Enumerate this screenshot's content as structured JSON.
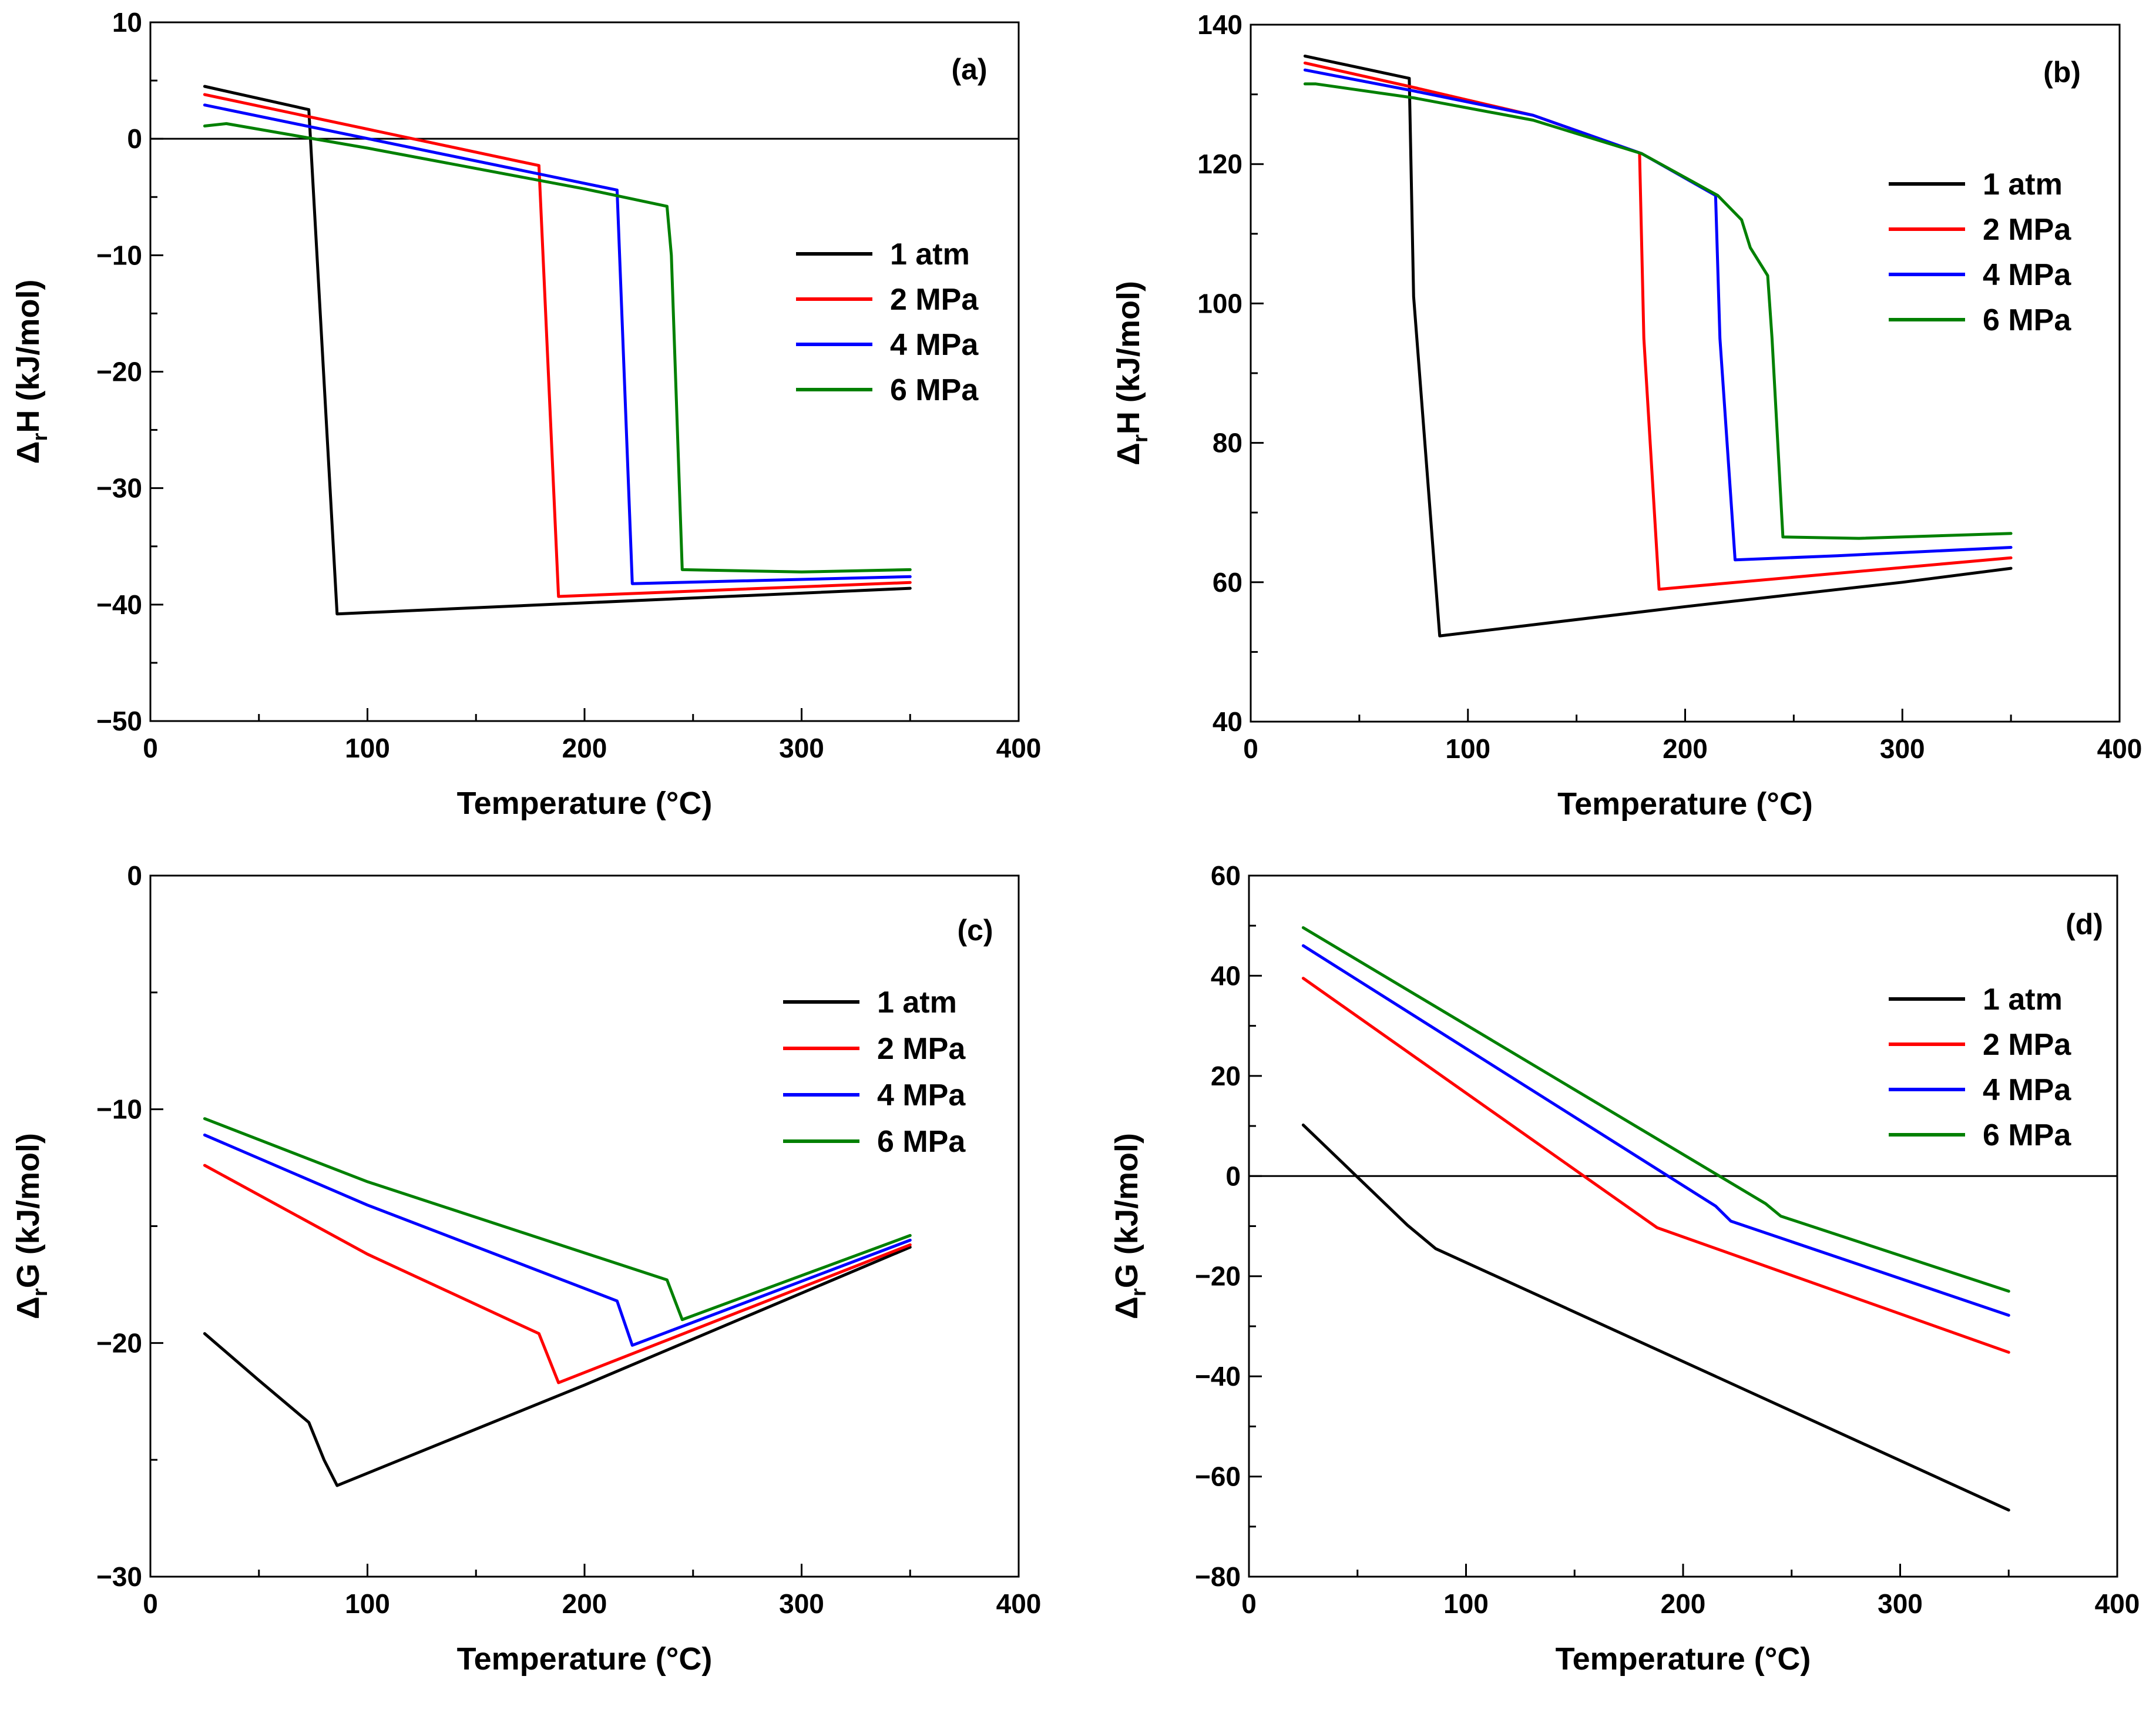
{
  "chart_data": [
    {
      "type": "line",
      "panel_label": "(a)",
      "xlabel": "Temperature (°C)",
      "ylabel_main": "Δ",
      "ylabel_sub": "r",
      "ylabel_rest": "H (kJ/mol)",
      "xlim": [
        0,
        400
      ],
      "ylim": [
        -50,
        10
      ],
      "xticks": [
        0,
        100,
        200,
        300,
        400
      ],
      "yticks": [
        -50,
        -40,
        -30,
        -20,
        -10,
        0,
        10
      ],
      "zero_line": true,
      "legend_position": "right",
      "series": [
        {
          "name": "1 atm",
          "color": "#000000",
          "x": [
            25,
            73,
            86,
            350
          ],
          "y": [
            4.5,
            2.5,
            -40.8,
            -38.6
          ]
        },
        {
          "name": "2 MPa",
          "color": "#ff0000",
          "x": [
            25,
            179,
            188,
            350
          ],
          "y": [
            3.8,
            -2.3,
            -39.3,
            -38.1
          ]
        },
        {
          "name": "4 MPa",
          "color": "#0000ff",
          "x": [
            25,
            215,
            222,
            350
          ],
          "y": [
            2.9,
            -4.4,
            -38.2,
            -37.6
          ]
        },
        {
          "name": "6 MPa",
          "color": "#008000",
          "x": [
            25,
            35,
            100,
            200,
            238,
            240,
            245,
            300,
            350
          ],
          "y": [
            1.1,
            1.3,
            -0.8,
            -4.3,
            -5.8,
            -10.0,
            -37.0,
            -37.2,
            -37.0
          ]
        }
      ]
    },
    {
      "type": "line",
      "panel_label": "(b)",
      "xlabel": "Temperature (°C)",
      "ylabel_main": "Δ",
      "ylabel_sub": "r",
      "ylabel_rest": "H (kJ/mol)",
      "xlim": [
        0,
        400
      ],
      "ylim": [
        40,
        140
      ],
      "xticks": [
        0,
        100,
        200,
        300,
        400
      ],
      "yticks": [
        40,
        60,
        80,
        100,
        120,
        140
      ],
      "zero_line": false,
      "legend_position": "right",
      "series": [
        {
          "name": "1 atm",
          "color": "#000000",
          "x": [
            25,
            73,
            75,
            87,
            200,
            300,
            350
          ],
          "y": [
            135.5,
            132.3,
            101,
            52.3,
            56.5,
            60,
            62
          ]
        },
        {
          "name": "2 MPa",
          "color": "#ff0000",
          "x": [
            25,
            75,
            130,
            179,
            181,
            188,
            260,
            350
          ],
          "y": [
            134.5,
            131,
            127,
            121.6,
            95,
            59,
            61,
            63.5
          ]
        },
        {
          "name": "4 MPa",
          "color": "#0000ff",
          "x": [
            25,
            75,
            130,
            180,
            214,
            216,
            223,
            270,
            350
          ],
          "y": [
            133.5,
            130.5,
            127,
            121.5,
            115.5,
            95,
            63.2,
            63.8,
            65
          ]
        },
        {
          "name": "6 MPa",
          "color": "#008000",
          "x": [
            25,
            30,
            75,
            130,
            180,
            215,
            226,
            230,
            238,
            240,
            245,
            280,
            350
          ],
          "y": [
            131.5,
            131.5,
            129.5,
            126.3,
            121.5,
            115.5,
            112,
            108,
            104,
            95,
            66.5,
            66.3,
            67
          ]
        }
      ]
    },
    {
      "type": "line",
      "panel_label": "(c)",
      "xlabel": "Temperature (°C)",
      "ylabel_main": "Δ",
      "ylabel_sub": "r",
      "ylabel_rest": "G (kJ/mol)",
      "xlim": [
        0,
        400
      ],
      "ylim": [
        -30,
        0
      ],
      "xticks": [
        0,
        100,
        200,
        300,
        400
      ],
      "yticks": [
        -30,
        -20,
        -10,
        0
      ],
      "zero_line": false,
      "legend_position": "right",
      "series": [
        {
          "name": "1 atm",
          "color": "#000000",
          "x": [
            25,
            50,
            73,
            80,
            86,
            200,
            350
          ],
          "y": [
            -19.6,
            -21.6,
            -23.4,
            -25.0,
            -26.1,
            -21.8,
            -15.9
          ]
        },
        {
          "name": "2 MPa",
          "color": "#ff0000",
          "x": [
            25,
            100,
            179,
            188,
            350
          ],
          "y": [
            -12.4,
            -16.2,
            -19.6,
            -21.7,
            -15.8
          ]
        },
        {
          "name": "4 MPa",
          "color": "#0000ff",
          "x": [
            25,
            100,
            215,
            222,
            350
          ],
          "y": [
            -11.1,
            -14.1,
            -18.2,
            -20.1,
            -15.6
          ]
        },
        {
          "name": "6 MPa",
          "color": "#008000",
          "x": [
            25,
            100,
            238,
            245,
            350
          ],
          "y": [
            -10.4,
            -13.1,
            -17.3,
            -19.0,
            -15.4
          ]
        }
      ]
    },
    {
      "type": "line",
      "panel_label": "(d)",
      "xlabel": "Temperature (°C)",
      "ylabel_main": "Δ",
      "ylabel_sub": "r",
      "ylabel_rest": "G (kJ/mol)",
      "xlim": [
        0,
        400
      ],
      "ylim": [
        -80,
        60
      ],
      "xticks": [
        0,
        100,
        200,
        300,
        400
      ],
      "yticks": [
        -80,
        -60,
        -40,
        -20,
        0,
        20,
        40,
        60
      ],
      "zero_line": true,
      "legend_position": "right",
      "series": [
        {
          "name": "1 atm",
          "color": "#000000",
          "x": [
            25,
            73,
            86,
            350
          ],
          "y": [
            10.2,
            -9.8,
            -14.5,
            -66.7
          ]
        },
        {
          "name": "2 MPa",
          "color": "#ff0000",
          "x": [
            25,
            188,
            350
          ],
          "y": [
            39.5,
            -10.3,
            -35.2
          ]
        },
        {
          "name": "4 MPa",
          "color": "#0000ff",
          "x": [
            25,
            215,
            222,
            350
          ],
          "y": [
            46.0,
            -6.0,
            -9.0,
            -27.8
          ]
        },
        {
          "name": "6 MPa",
          "color": "#008000",
          "x": [
            25,
            238,
            245,
            350
          ],
          "y": [
            49.6,
            -5.5,
            -8.0,
            -23.0
          ]
        }
      ]
    }
  ]
}
